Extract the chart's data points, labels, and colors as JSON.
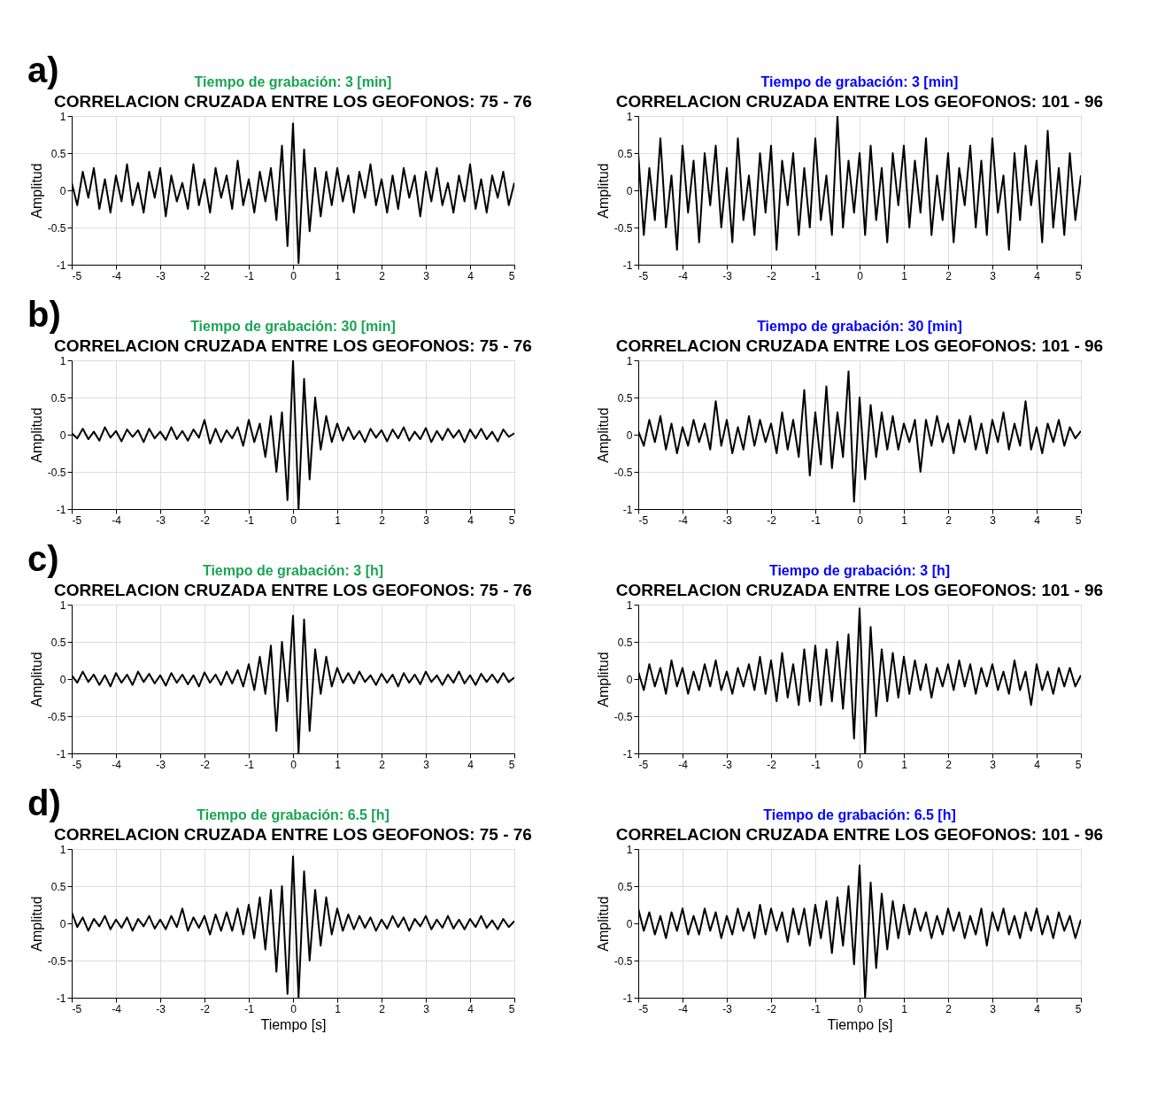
{
  "chart_data": [
    {
      "type": "line",
      "title": "CORRELACION CRUZADA ENTRE LOS GEOFONOS: 75 - 76",
      "subtitle": "Tiempo de grabación: 3 [min]",
      "ylabel": "Amplitud",
      "annotations": [
        "a)"
      ],
      "xlim": [
        -5,
        5
      ],
      "xticks": [
        -5,
        -4,
        -3,
        -2,
        -1,
        0,
        1,
        2,
        3,
        4,
        5
      ],
      "ylim": [
        -1,
        1
      ],
      "yticks": [
        -1,
        -0.5,
        0,
        0.5,
        1
      ],
      "grid": true,
      "line_style": "solid",
      "x": [
        -5,
        -4.875,
        -4.75,
        -4.625,
        -4.5,
        -4.375,
        -4.25,
        -4.125,
        -4,
        -3.875,
        -3.75,
        -3.625,
        -3.5,
        -3.375,
        -3.25,
        -3.125,
        -3,
        -2.875,
        -2.75,
        -2.625,
        -2.5,
        -2.375,
        -2.25,
        -2.125,
        -2,
        -1.875,
        -1.75,
        -1.625,
        -1.5,
        -1.375,
        -1.25,
        -1.125,
        -1,
        -0.875,
        -0.75,
        -0.625,
        -0.5,
        -0.375,
        -0.25,
        -0.125,
        0,
        0.125,
        0.25,
        0.375,
        0.5,
        0.625,
        0.75,
        0.875,
        1,
        1.125,
        1.25,
        1.375,
        1.5,
        1.625,
        1.75,
        1.875,
        2,
        2.125,
        2.25,
        2.375,
        2.5,
        2.625,
        2.75,
        2.875,
        3,
        3.125,
        3.25,
        3.375,
        3.5,
        3.625,
        3.75,
        3.875,
        4,
        4.125,
        4.25,
        4.375,
        4.5,
        4.625,
        4.75,
        4.875,
        5
      ],
      "series": [
        {
          "color": "#000000",
          "values": [
            0.1,
            -0.2,
            0.25,
            -0.1,
            0.3,
            -0.25,
            0.15,
            -0.3,
            0.2,
            -0.15,
            0.35,
            -0.2,
            0.1,
            -0.3,
            0.25,
            -0.1,
            0.3,
            -0.35,
            0.2,
            -0.15,
            0.1,
            -0.25,
            0.35,
            -0.2,
            0.15,
            -0.3,
            0.3,
            -0.1,
            0.2,
            -0.25,
            0.4,
            -0.2,
            0.15,
            -0.3,
            0.25,
            -0.15,
            0.3,
            -0.4,
            0.6,
            -0.75,
            0.9,
            -0.98,
            0.55,
            -0.55,
            0.3,
            -0.35,
            0.25,
            -0.2,
            0.3,
            -0.15,
            0.2,
            -0.3,
            0.25,
            -0.1,
            0.35,
            -0.2,
            0.15,
            -0.3,
            0.2,
            -0.25,
            0.3,
            -0.1,
            0.2,
            -0.35,
            0.25,
            -0.15,
            0.3,
            -0.2,
            0.1,
            -0.3,
            0.2,
            -0.15,
            0.35,
            -0.25,
            0.15,
            -0.3,
            0.2,
            -0.1,
            0.25,
            -0.2,
            0.1
          ]
        }
      ]
    },
    {
      "type": "line",
      "title": "CORRELACION CRUZADA ENTRE LOS GEOFONOS: 101 - 96",
      "subtitle": "Tiempo de grabación: 3 [min]",
      "ylabel": "Amplitud",
      "xlim": [
        -5,
        5
      ],
      "xticks": [
        -5,
        -4,
        -3,
        -2,
        -1,
        0,
        1,
        2,
        3,
        4,
        5
      ],
      "ylim": [
        -1,
        1
      ],
      "yticks": [
        -1,
        -0.5,
        0,
        0.5,
        1
      ],
      "grid": true,
      "line_style": "solid",
      "x": [
        -5,
        -4.875,
        -4.75,
        -4.625,
        -4.5,
        -4.375,
        -4.25,
        -4.125,
        -4,
        -3.875,
        -3.75,
        -3.625,
        -3.5,
        -3.375,
        -3.25,
        -3.125,
        -3,
        -2.875,
        -2.75,
        -2.625,
        -2.5,
        -2.375,
        -2.25,
        -2.125,
        -2,
        -1.875,
        -1.75,
        -1.625,
        -1.5,
        -1.375,
        -1.25,
        -1.125,
        -1,
        -0.875,
        -0.75,
        -0.625,
        -0.5,
        -0.375,
        -0.25,
        -0.125,
        0,
        0.125,
        0.25,
        0.375,
        0.5,
        0.625,
        0.75,
        0.875,
        1,
        1.125,
        1.25,
        1.375,
        1.5,
        1.625,
        1.75,
        1.875,
        2,
        2.125,
        2.25,
        2.375,
        2.5,
        2.625,
        2.75,
        2.875,
        3,
        3.125,
        3.25,
        3.375,
        3.5,
        3.625,
        3.75,
        3.875,
        4,
        4.125,
        4.25,
        4.375,
        4.5,
        4.625,
        4.75,
        4.875,
        5
      ],
      "series": [
        {
          "color": "#000000",
          "values": [
            0.5,
            -0.6,
            0.3,
            -0.4,
            0.7,
            -0.5,
            0.2,
            -0.8,
            0.6,
            -0.3,
            0.4,
            -0.7,
            0.5,
            -0.2,
            0.6,
            -0.5,
            0.3,
            -0.7,
            0.7,
            -0.4,
            0.2,
            -0.6,
            0.5,
            -0.3,
            0.6,
            -0.8,
            0.4,
            -0.2,
            0.5,
            -0.6,
            0.3,
            -0.5,
            0.7,
            -0.4,
            0.2,
            -0.6,
            1.0,
            -0.5,
            0.4,
            -0.3,
            0.5,
            -0.6,
            0.6,
            -0.4,
            0.3,
            -0.7,
            0.5,
            -0.2,
            0.6,
            -0.5,
            0.4,
            -0.3,
            0.7,
            -0.6,
            0.2,
            -0.4,
            0.5,
            -0.7,
            0.3,
            -0.2,
            0.6,
            -0.5,
            0.4,
            -0.6,
            0.7,
            -0.3,
            0.2,
            -0.8,
            0.5,
            -0.4,
            0.6,
            -0.2,
            0.4,
            -0.7,
            0.8,
            -0.5,
            0.3,
            -0.6,
            0.5,
            -0.4,
            0.2
          ]
        }
      ]
    },
    {
      "type": "line",
      "title": "CORRELACION CRUZADA ENTRE LOS GEOFONOS: 75 - 76",
      "subtitle": "Tiempo de grabación: 30 [min]",
      "ylabel": "Amplitud",
      "annotations": [
        "b)"
      ],
      "xlim": [
        -5,
        5
      ],
      "xticks": [
        -5,
        -4,
        -3,
        -2,
        -1,
        0,
        1,
        2,
        3,
        4,
        5
      ],
      "ylim": [
        -1,
        1
      ],
      "yticks": [
        -1,
        -0.5,
        0,
        0.5,
        1
      ],
      "grid": true,
      "line_style": "solid",
      "x": [
        -5,
        -4.875,
        -4.75,
        -4.625,
        -4.5,
        -4.375,
        -4.25,
        -4.125,
        -4,
        -3.875,
        -3.75,
        -3.625,
        -3.5,
        -3.375,
        -3.25,
        -3.125,
        -3,
        -2.875,
        -2.75,
        -2.625,
        -2.5,
        -2.375,
        -2.25,
        -2.125,
        -2,
        -1.875,
        -1.75,
        -1.625,
        -1.5,
        -1.375,
        -1.25,
        -1.125,
        -1,
        -0.875,
        -0.75,
        -0.625,
        -0.5,
        -0.375,
        -0.25,
        -0.125,
        0,
        0.125,
        0.25,
        0.375,
        0.5,
        0.625,
        0.75,
        0.875,
        1,
        1.125,
        1.25,
        1.375,
        1.5,
        1.625,
        1.75,
        1.875,
        2,
        2.125,
        2.25,
        2.375,
        2.5,
        2.625,
        2.75,
        2.875,
        3,
        3.125,
        3.25,
        3.375,
        3.5,
        3.625,
        3.75,
        3.875,
        4,
        4.125,
        4.25,
        4.375,
        4.5,
        4.625,
        4.75,
        4.875,
        5
      ],
      "series": [
        {
          "color": "#000000",
          "values": [
            0.02,
            -0.05,
            0.08,
            -0.06,
            0.04,
            -0.08,
            0.1,
            -0.04,
            0.05,
            -0.09,
            0.07,
            -0.03,
            0.06,
            -0.1,
            0.08,
            -0.05,
            0.04,
            -0.07,
            0.1,
            -0.06,
            0.05,
            -0.08,
            0.07,
            -0.04,
            0.2,
            -0.12,
            0.08,
            -0.1,
            0.06,
            -0.05,
            0.1,
            -0.15,
            0.2,
            -0.1,
            0.15,
            -0.3,
            0.25,
            -0.5,
            0.3,
            -0.88,
            1.0,
            -1.0,
            0.75,
            -0.6,
            0.5,
            -0.2,
            0.25,
            -0.1,
            0.15,
            -0.08,
            0.1,
            -0.06,
            0.05,
            -0.1,
            0.08,
            -0.04,
            0.06,
            -0.09,
            0.07,
            -0.05,
            0.1,
            -0.08,
            0.04,
            -0.06,
            0.09,
            -0.1,
            0.05,
            -0.07,
            0.08,
            -0.04,
            0.06,
            -0.1,
            0.07,
            -0.05,
            0.08,
            -0.06,
            0.04,
            -0.09,
            0.07,
            -0.03,
            0.02
          ]
        }
      ]
    },
    {
      "type": "line",
      "title": "CORRELACION CRUZADA ENTRE LOS GEOFONOS: 101 - 96",
      "subtitle": "Tiempo de grabación: 30 [min]",
      "ylabel": "Amplitud",
      "xlim": [
        -5,
        5
      ],
      "xticks": [
        -5,
        -4,
        -3,
        -2,
        -1,
        0,
        1,
        2,
        3,
        4,
        5
      ],
      "ylim": [
        -1,
        1
      ],
      "yticks": [
        -1,
        -0.5,
        0,
        0.5,
        1
      ],
      "grid": true,
      "line_style": "solid",
      "x": [
        -5,
        -4.875,
        -4.75,
        -4.625,
        -4.5,
        -4.375,
        -4.25,
        -4.125,
        -4,
        -3.875,
        -3.75,
        -3.625,
        -3.5,
        -3.375,
        -3.25,
        -3.125,
        -3,
        -2.875,
        -2.75,
        -2.625,
        -2.5,
        -2.375,
        -2.25,
        -2.125,
        -2,
        -1.875,
        -1.75,
        -1.625,
        -1.5,
        -1.375,
        -1.25,
        -1.125,
        -1,
        -0.875,
        -0.75,
        -0.625,
        -0.5,
        -0.375,
        -0.25,
        -0.125,
        0,
        0.125,
        0.25,
        0.375,
        0.5,
        0.625,
        0.75,
        0.875,
        1,
        1.125,
        1.25,
        1.375,
        1.5,
        1.625,
        1.75,
        1.875,
        2,
        2.125,
        2.25,
        2.375,
        2.5,
        2.625,
        2.75,
        2.875,
        3,
        3.125,
        3.25,
        3.375,
        3.5,
        3.625,
        3.75,
        3.875,
        4,
        4.125,
        4.25,
        4.375,
        4.5,
        4.625,
        4.75,
        4.875,
        5
      ],
      "series": [
        {
          "color": "#000000",
          "values": [
            0.05,
            -0.15,
            0.2,
            -0.1,
            0.25,
            -0.2,
            0.15,
            -0.25,
            0.1,
            -0.15,
            0.2,
            -0.1,
            0.15,
            -0.2,
            0.45,
            -0.15,
            0.2,
            -0.25,
            0.1,
            -0.2,
            0.25,
            -0.15,
            0.2,
            -0.1,
            0.15,
            -0.25,
            0.3,
            -0.2,
            0.2,
            -0.3,
            0.6,
            -0.55,
            0.3,
            -0.4,
            0.65,
            -0.45,
            0.3,
            -0.3,
            0.85,
            -0.9,
            0.5,
            -0.6,
            0.4,
            -0.3,
            0.3,
            -0.2,
            0.25,
            -0.2,
            0.15,
            -0.1,
            0.2,
            -0.5,
            0.2,
            -0.15,
            0.25,
            -0.1,
            0.15,
            -0.25,
            0.2,
            -0.1,
            0.25,
            -0.2,
            0.15,
            -0.25,
            0.2,
            -0.1,
            0.3,
            -0.2,
            0.15,
            -0.15,
            0.45,
            -0.2,
            0.1,
            -0.25,
            0.15,
            -0.1,
            0.2,
            -0.15,
            0.1,
            -0.05,
            0.05
          ]
        }
      ]
    },
    {
      "type": "line",
      "title": "CORRELACION CRUZADA ENTRE LOS GEOFONOS: 75 - 76",
      "subtitle": "Tiempo de grabación: 3 [h]",
      "ylabel": "Amplitud",
      "annotations": [
        "c)"
      ],
      "xlim": [
        -5,
        5
      ],
      "xticks": [
        -5,
        -4,
        -3,
        -2,
        -1,
        0,
        1,
        2,
        3,
        4,
        5
      ],
      "ylim": [
        -1,
        1
      ],
      "yticks": [
        -1,
        -0.5,
        0,
        0.5,
        1
      ],
      "grid": true,
      "line_style": "solid",
      "x": [
        -5,
        -4.875,
        -4.75,
        -4.625,
        -4.5,
        -4.375,
        -4.25,
        -4.125,
        -4,
        -3.875,
        -3.75,
        -3.625,
        -3.5,
        -3.375,
        -3.25,
        -3.125,
        -3,
        -2.875,
        -2.75,
        -2.625,
        -2.5,
        -2.375,
        -2.25,
        -2.125,
        -2,
        -1.875,
        -1.75,
        -1.625,
        -1.5,
        -1.375,
        -1.25,
        -1.125,
        -1,
        -0.875,
        -0.75,
        -0.625,
        -0.5,
        -0.375,
        -0.25,
        -0.125,
        0,
        0.125,
        0.25,
        0.375,
        0.5,
        0.625,
        0.75,
        0.875,
        1,
        1.125,
        1.25,
        1.375,
        1.5,
        1.625,
        1.75,
        1.875,
        2,
        2.125,
        2.25,
        2.375,
        2.5,
        2.625,
        2.75,
        2.875,
        3,
        3.125,
        3.25,
        3.375,
        3.5,
        3.625,
        3.75,
        3.875,
        4,
        4.125,
        4.25,
        4.375,
        4.5,
        4.625,
        4.75,
        4.875,
        5
      ],
      "series": [
        {
          "color": "#000000",
          "values": [
            0.05,
            -0.05,
            0.1,
            -0.04,
            0.06,
            -0.08,
            0.05,
            -0.1,
            0.08,
            -0.05,
            0.06,
            -0.08,
            0.1,
            -0.04,
            0.07,
            -0.06,
            0.05,
            -0.09,
            0.08,
            -0.05,
            0.06,
            -0.07,
            0.05,
            -0.1,
            0.09,
            -0.05,
            0.06,
            -0.08,
            0.1,
            -0.06,
            0.12,
            -0.1,
            0.2,
            -0.15,
            0.3,
            -0.2,
            0.45,
            -0.7,
            0.5,
            -0.3,
            0.85,
            -1.0,
            0.8,
            -0.7,
            0.4,
            -0.2,
            0.3,
            -0.1,
            0.15,
            -0.05,
            0.08,
            -0.06,
            0.1,
            -0.04,
            0.05,
            -0.08,
            0.07,
            -0.05,
            0.06,
            -0.1,
            0.08,
            -0.05,
            0.06,
            -0.07,
            0.1,
            -0.04,
            0.05,
            -0.08,
            0.06,
            -0.05,
            0.1,
            -0.06,
            0.05,
            -0.08,
            0.07,
            -0.04,
            0.06,
            -0.05,
            0.08,
            -0.04,
            0.02
          ]
        }
      ]
    },
    {
      "type": "line",
      "title": "CORRELACION CRUZADA ENTRE LOS GEOFONOS: 101 - 96",
      "subtitle": "Tiempo de grabación: 3 [h]",
      "ylabel": "Amplitud",
      "xlim": [
        -5,
        5
      ],
      "xticks": [
        -5,
        -4,
        -3,
        -2,
        -1,
        0,
        1,
        2,
        3,
        4,
        5
      ],
      "ylim": [
        -1,
        1
      ],
      "yticks": [
        -1,
        -0.5,
        0,
        0.5,
        1
      ],
      "grid": true,
      "line_style": "solid",
      "x": [
        -5,
        -4.875,
        -4.75,
        -4.625,
        -4.5,
        -4.375,
        -4.25,
        -4.125,
        -4,
        -3.875,
        -3.75,
        -3.625,
        -3.5,
        -3.375,
        -3.25,
        -3.125,
        -3,
        -2.875,
        -2.75,
        -2.625,
        -2.5,
        -2.375,
        -2.25,
        -2.125,
        -2,
        -1.875,
        -1.75,
        -1.625,
        -1.5,
        -1.375,
        -1.25,
        -1.125,
        -1,
        -0.875,
        -0.75,
        -0.625,
        -0.5,
        -0.375,
        -0.25,
        -0.125,
        0,
        0.125,
        0.25,
        0.375,
        0.5,
        0.625,
        0.75,
        0.875,
        1,
        1.125,
        1.25,
        1.375,
        1.5,
        1.625,
        1.75,
        1.875,
        2,
        2.125,
        2.25,
        2.375,
        2.5,
        2.625,
        2.75,
        2.875,
        3,
        3.125,
        3.25,
        3.375,
        3.5,
        3.625,
        3.75,
        3.875,
        4,
        4.125,
        4.25,
        4.375,
        4.5,
        4.625,
        4.75,
        4.875,
        5
      ],
      "series": [
        {
          "color": "#000000",
          "values": [
            0.1,
            -0.15,
            0.2,
            -0.1,
            0.15,
            -0.2,
            0.25,
            -0.1,
            0.15,
            -0.2,
            0.1,
            -0.15,
            0.2,
            -0.1,
            0.25,
            -0.15,
            0.1,
            -0.2,
            0.15,
            -0.1,
            0.2,
            -0.15,
            0.3,
            -0.2,
            0.25,
            -0.3,
            0.35,
            -0.25,
            0.2,
            -0.35,
            0.4,
            -0.3,
            0.45,
            -0.35,
            0.4,
            -0.3,
            0.5,
            -0.4,
            0.6,
            -0.8,
            0.95,
            -1.0,
            0.7,
            -0.5,
            0.4,
            -0.3,
            0.35,
            -0.25,
            0.3,
            -0.2,
            0.25,
            -0.15,
            0.2,
            -0.25,
            0.15,
            -0.1,
            0.2,
            -0.15,
            0.25,
            -0.1,
            0.2,
            -0.2,
            0.15,
            -0.1,
            0.2,
            -0.15,
            0.1,
            -0.2,
            0.25,
            -0.15,
            0.1,
            -0.35,
            0.2,
            -0.15,
            0.1,
            -0.2,
            0.15,
            -0.1,
            0.15,
            -0.1,
            0.05
          ]
        }
      ]
    },
    {
      "type": "line",
      "title": "CORRELACION CRUZADA ENTRE LOS GEOFONOS: 75 - 76",
      "subtitle": "Tiempo de grabación: 6.5 [h]",
      "xlabel": "Tiempo [s]",
      "ylabel": "Amplitud",
      "annotations": [
        "d)"
      ],
      "xlim": [
        -5,
        5
      ],
      "xticks": [
        -5,
        -4,
        -3,
        -2,
        -1,
        0,
        1,
        2,
        3,
        4,
        5
      ],
      "ylim": [
        -1,
        1
      ],
      "yticks": [
        -1,
        -0.5,
        0,
        0.5,
        1
      ],
      "grid": true,
      "line_style": "solid",
      "x": [
        -5,
        -4.875,
        -4.75,
        -4.625,
        -4.5,
        -4.375,
        -4.25,
        -4.125,
        -4,
        -3.875,
        -3.75,
        -3.625,
        -3.5,
        -3.375,
        -3.25,
        -3.125,
        -3,
        -2.875,
        -2.75,
        -2.625,
        -2.5,
        -2.375,
        -2.25,
        -2.125,
        -2,
        -1.875,
        -1.75,
        -1.625,
        -1.5,
        -1.375,
        -1.25,
        -1.125,
        -1,
        -0.875,
        -0.75,
        -0.625,
        -0.5,
        -0.375,
        -0.25,
        -0.125,
        0,
        0.125,
        0.25,
        0.375,
        0.5,
        0.625,
        0.75,
        0.875,
        1,
        1.125,
        1.25,
        1.375,
        1.5,
        1.625,
        1.75,
        1.875,
        2,
        2.125,
        2.25,
        2.375,
        2.5,
        2.625,
        2.75,
        2.875,
        3,
        3.125,
        3.25,
        3.375,
        3.5,
        3.625,
        3.75,
        3.875,
        4,
        4.125,
        4.25,
        4.375,
        4.5,
        4.625,
        4.75,
        4.875,
        5
      ],
      "series": [
        {
          "color": "#000000",
          "values": [
            0.15,
            -0.05,
            0.08,
            -0.1,
            0.06,
            -0.04,
            0.1,
            -0.08,
            0.05,
            -0.06,
            0.08,
            -0.1,
            0.06,
            -0.04,
            0.1,
            -0.07,
            0.05,
            -0.08,
            0.1,
            -0.05,
            0.2,
            -0.1,
            0.08,
            -0.06,
            0.1,
            -0.15,
            0.12,
            -0.1,
            0.15,
            -0.1,
            0.2,
            -0.15,
            0.25,
            -0.2,
            0.35,
            -0.35,
            0.45,
            -0.65,
            0.5,
            -0.95,
            0.9,
            -1.0,
            0.7,
            -0.5,
            0.45,
            -0.3,
            0.35,
            -0.15,
            0.2,
            -0.1,
            0.12,
            -0.08,
            0.1,
            -0.06,
            0.08,
            -0.1,
            0.05,
            -0.07,
            0.1,
            -0.05,
            0.08,
            -0.1,
            0.06,
            -0.04,
            0.1,
            -0.08,
            0.05,
            -0.06,
            0.1,
            -0.07,
            0.05,
            -0.08,
            0.06,
            -0.05,
            0.1,
            -0.06,
            0.04,
            -0.08,
            0.06,
            -0.05,
            0.03
          ]
        }
      ]
    },
    {
      "type": "line",
      "title": "CORRELACION CRUZADA ENTRE LOS GEOFONOS: 101 - 96",
      "subtitle": "Tiempo de grabación: 6.5 [h]",
      "xlabel": "Tiempo [s]",
      "ylabel": "Amplitud",
      "xlim": [
        -5,
        5
      ],
      "xticks": [
        -5,
        -4,
        -3,
        -2,
        -1,
        0,
        1,
        2,
        3,
        4,
        5
      ],
      "ylim": [
        -1,
        1
      ],
      "yticks": [
        -1,
        -0.5,
        0,
        0.5,
        1
      ],
      "grid": true,
      "line_style": "solid",
      "x": [
        -5,
        -4.875,
        -4.75,
        -4.625,
        -4.5,
        -4.375,
        -4.25,
        -4.125,
        -4,
        -3.875,
        -3.75,
        -3.625,
        -3.5,
        -3.375,
        -3.25,
        -3.125,
        -3,
        -2.875,
        -2.75,
        -2.625,
        -2.5,
        -2.375,
        -2.25,
        -2.125,
        -2,
        -1.875,
        -1.75,
        -1.625,
        -1.5,
        -1.375,
        -1.25,
        -1.125,
        -1,
        -0.875,
        -0.75,
        -0.625,
        -0.5,
        -0.375,
        -0.25,
        -0.125,
        0,
        0.125,
        0.25,
        0.375,
        0.5,
        0.625,
        0.75,
        0.875,
        1,
        1.125,
        1.25,
        1.375,
        1.5,
        1.625,
        1.75,
        1.875,
        2,
        2.125,
        2.25,
        2.375,
        2.5,
        2.625,
        2.75,
        2.875,
        3,
        3.125,
        3.25,
        3.375,
        3.5,
        3.625,
        3.75,
        3.875,
        4,
        4.125,
        4.25,
        4.375,
        4.5,
        4.625,
        4.75,
        4.875,
        5
      ],
      "series": [
        {
          "color": "#000000",
          "values": [
            0.2,
            -0.1,
            0.15,
            -0.15,
            0.1,
            -0.2,
            0.15,
            -0.1,
            0.2,
            -0.15,
            0.1,
            -0.15,
            0.2,
            -0.1,
            0.15,
            -0.2,
            0.1,
            -0.15,
            0.2,
            -0.1,
            0.15,
            -0.2,
            0.25,
            -0.15,
            0.2,
            -0.1,
            0.15,
            -0.25,
            0.2,
            -0.15,
            0.2,
            -0.3,
            0.25,
            -0.2,
            0.3,
            -0.4,
            0.35,
            -0.3,
            0.5,
            -0.55,
            0.78,
            -1.0,
            0.55,
            -0.6,
            0.4,
            -0.35,
            0.3,
            -0.2,
            0.25,
            -0.15,
            0.2,
            -0.1,
            0.15,
            -0.2,
            0.1,
            -0.15,
            0.2,
            -0.1,
            0.15,
            -0.2,
            0.1,
            -0.15,
            0.2,
            -0.3,
            0.15,
            -0.1,
            0.2,
            -0.15,
            0.1,
            -0.2,
            0.15,
            -0.1,
            0.2,
            -0.15,
            0.1,
            -0.2,
            0.15,
            -0.1,
            0.1,
            -0.2,
            0.05
          ]
        }
      ]
    }
  ]
}
